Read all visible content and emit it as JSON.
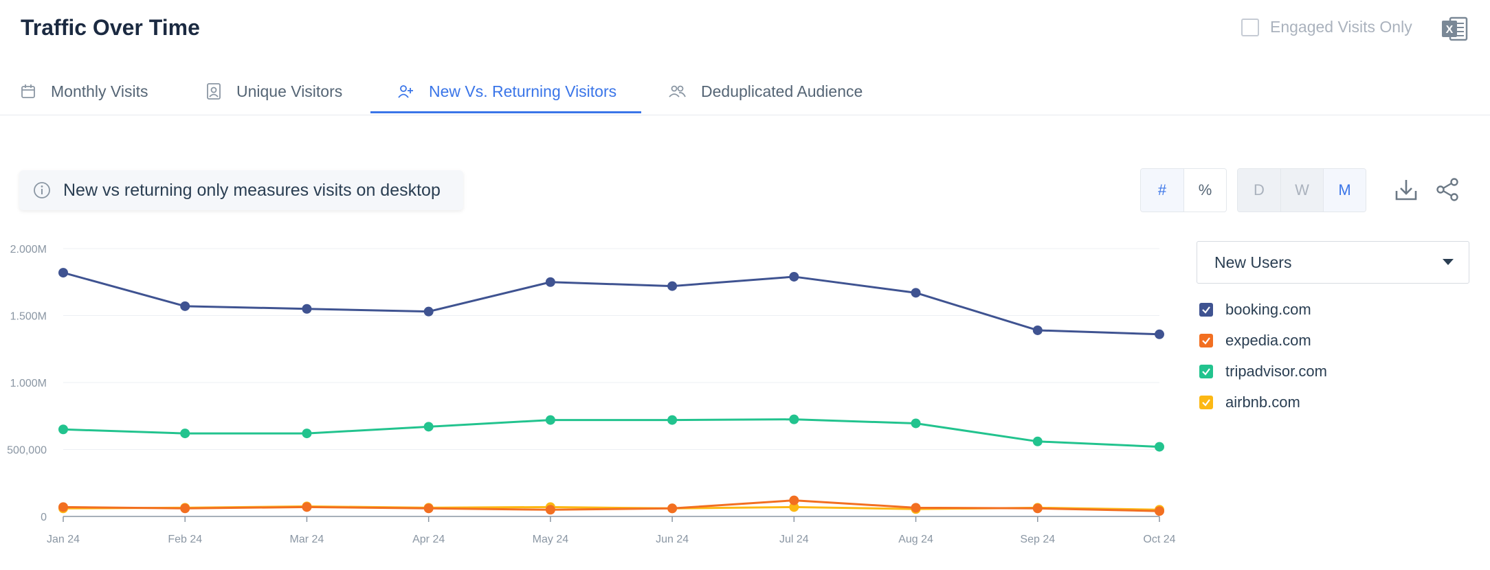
{
  "header": {
    "title": "Traffic Over Time",
    "engaged_label": "Engaged Visits Only"
  },
  "tabs": [
    {
      "label": "Monthly Visits",
      "icon": "calendar-icon"
    },
    {
      "label": "Unique Visitors",
      "icon": "id-badge-icon"
    },
    {
      "label": "New Vs. Returning Visitors",
      "icon": "user-plus-icon",
      "active": true
    },
    {
      "label": "Deduplicated Audience",
      "icon": "users-icon"
    }
  ],
  "info": {
    "text": "New vs returning only measures visits on desktop"
  },
  "toggles": {
    "value_mode": [
      "#",
      "%"
    ],
    "granularity": [
      "D",
      "W",
      "M"
    ],
    "selected_value_mode": "#",
    "selected_granularity": "M"
  },
  "dropdown": {
    "value": "New Users"
  },
  "colors": {
    "booking": "#3f5391",
    "expedia": "#f26f21",
    "tripadvisor": "#22c38e",
    "airbnb": "#fcb814",
    "accent": "#3a75e8"
  },
  "chart_data": {
    "type": "line",
    "x": [
      "Jan 24",
      "Feb 24",
      "Mar 24",
      "Apr 24",
      "May 24",
      "Jun 24",
      "Jul 24",
      "Aug 24",
      "Sep 24",
      "Oct 24"
    ],
    "ylim": [
      0,
      2000000
    ],
    "yticks": [
      0,
      500000,
      1000000,
      1500000,
      2000000
    ],
    "ytick_labels": [
      "0",
      "500,000",
      "1.000M",
      "1.500M",
      "2.000M"
    ],
    "grid": true,
    "legend_position": "right",
    "series": [
      {
        "name": "booking.com",
        "color": "#3f5391",
        "values": [
          1820000,
          1570000,
          1550000,
          1530000,
          1750000,
          1720000,
          1790000,
          1670000,
          1390000,
          1360000
        ]
      },
      {
        "name": "expedia.com",
        "color": "#f26f21",
        "values": [
          70000,
          60000,
          70000,
          60000,
          50000,
          60000,
          120000,
          65000,
          60000,
          40000
        ]
      },
      {
        "name": "tripadvisor.com",
        "color": "#22c38e",
        "values": [
          650000,
          620000,
          620000,
          670000,
          720000,
          720000,
          725000,
          695000,
          560000,
          520000
        ]
      },
      {
        "name": "airbnb.com",
        "color": "#fcb814",
        "values": [
          60000,
          65000,
          75000,
          65000,
          70000,
          60000,
          70000,
          55000,
          65000,
          50000
        ]
      }
    ]
  }
}
